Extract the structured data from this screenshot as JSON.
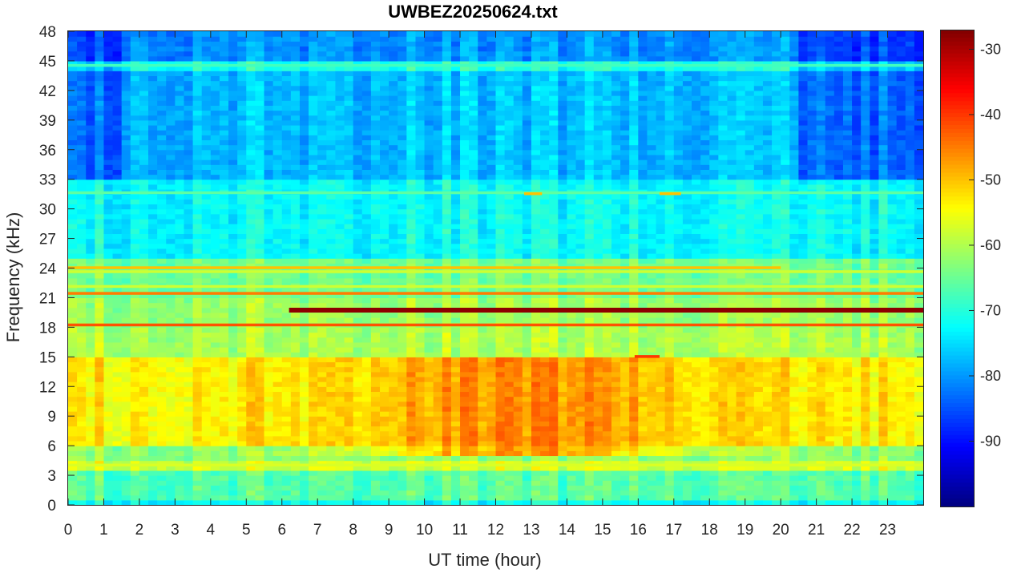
{
  "chart_data": {
    "type": "heatmap",
    "title": "UWBEZ20250624.txt",
    "xlabel": "UT time (hour)",
    "ylabel": "Frequency (kHz)",
    "xlim": [
      0,
      24
    ],
    "ylim": [
      0,
      48
    ],
    "x_ticks": [
      0,
      1,
      2,
      3,
      4,
      5,
      6,
      7,
      8,
      9,
      10,
      11,
      12,
      13,
      14,
      15,
      16,
      17,
      18,
      19,
      20,
      21,
      22,
      23
    ],
    "y_ticks": [
      0,
      3,
      6,
      9,
      12,
      15,
      18,
      21,
      24,
      27,
      30,
      33,
      36,
      39,
      42,
      45,
      48
    ],
    "colormap": "jet",
    "color_limits": [
      -100,
      -27
    ],
    "colorbar_ticks": [
      -30,
      -40,
      -50,
      -60,
      -70,
      -80,
      -90
    ],
    "background_by_frequency_band": [
      {
        "f": [
          0,
          0.5
        ],
        "value": -72
      },
      {
        "f": [
          0.5,
          3.5
        ],
        "value": -66
      },
      {
        "f": [
          3.5,
          4.5
        ],
        "value": -57
      },
      {
        "f": [
          4.5,
          6
        ],
        "value": -62
      },
      {
        "f": [
          6,
          15
        ],
        "value": -53
      },
      {
        "f": [
          15,
          18
        ],
        "value": -60
      },
      {
        "f": [
          18,
          21
        ],
        "value": -61
      },
      {
        "f": [
          21,
          25
        ],
        "value": -64
      },
      {
        "f": [
          25,
          33
        ],
        "value": -72
      },
      {
        "f": [
          33,
          44
        ],
        "value": -77
      },
      {
        "f": [
          44,
          45
        ],
        "value": -70
      },
      {
        "f": [
          45,
          48
        ],
        "value": -80
      }
    ],
    "narrowband_lines": [
      {
        "freq_khz": 19.8,
        "start_hour": 6.2,
        "end_hour": 24,
        "value": -28
      },
      {
        "freq_khz": 21.4,
        "start_hour": 0,
        "end_hour": 24,
        "value": -45
      },
      {
        "freq_khz": 18.2,
        "start_hour": 0,
        "end_hour": 24,
        "value": -42
      },
      {
        "freq_khz": 24.0,
        "start_hour": 0,
        "end_hour": 20,
        "value": -50
      },
      {
        "freq_khz": 23.6,
        "start_hour": 0,
        "end_hour": 24,
        "value": -58
      },
      {
        "freq_khz": 22.1,
        "start_hour": 0,
        "end_hour": 24,
        "value": -58
      },
      {
        "freq_khz": 4.0,
        "start_hour": 0,
        "end_hour": 24,
        "value": -57
      },
      {
        "freq_khz": 44.5,
        "start_hour": 0,
        "end_hour": 24,
        "value": -68
      },
      {
        "freq_khz": 31.6,
        "start_hour": 0,
        "end_hour": 24,
        "value": -66
      },
      {
        "freq_khz": 15.0,
        "start_hour": 15.9,
        "end_hour": 16.6,
        "value": -40
      },
      {
        "freq_khz": 31.5,
        "start_hour": 12.8,
        "end_hour": 13.3,
        "value": -50
      },
      {
        "freq_khz": 31.5,
        "start_hour": 16.6,
        "end_hour": 17.2,
        "value": -50
      }
    ],
    "enhanced_region": {
      "freq_khz": [
        5,
        15
      ],
      "peak_hour": 12.8,
      "peak_value": -45
    }
  }
}
